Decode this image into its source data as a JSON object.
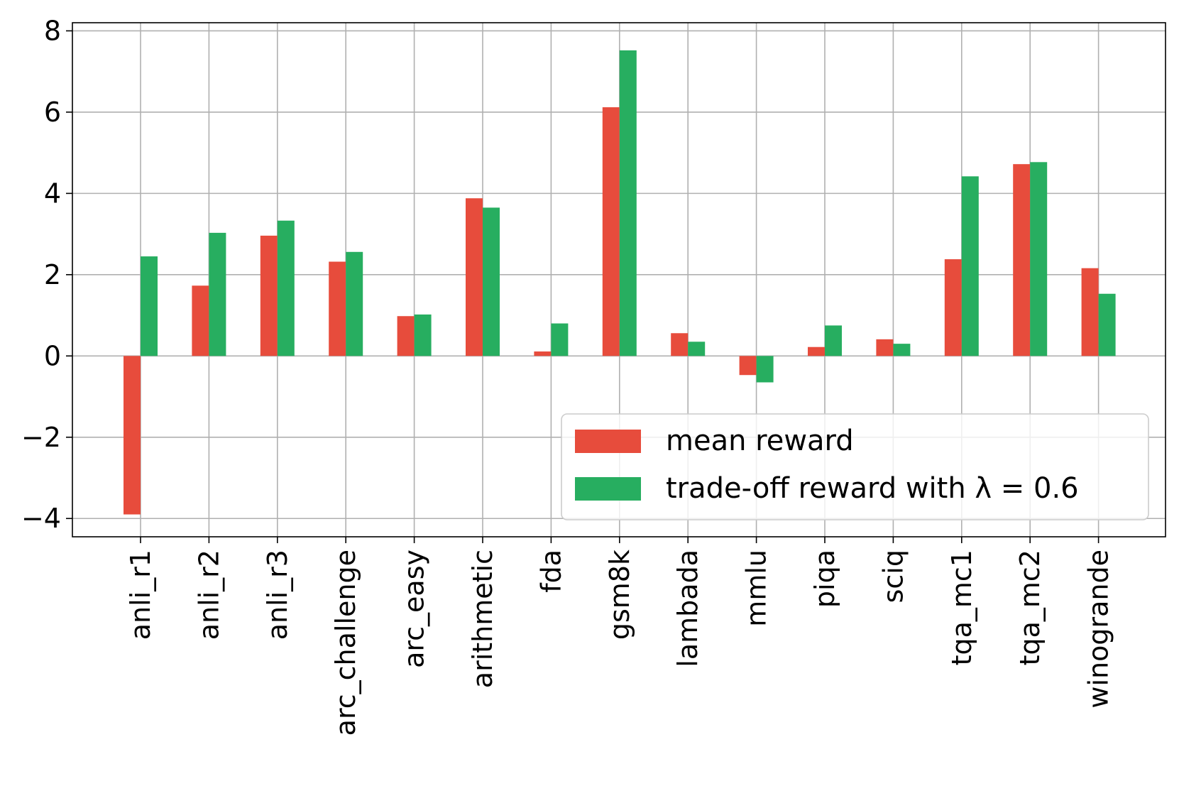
{
  "chart_data": {
    "type": "bar",
    "categories": [
      "anli_r1",
      "anli_r2",
      "anli_r3",
      "arc_challenge",
      "arc_easy",
      "arithmetic",
      "fda",
      "gsm8k",
      "lambada",
      "mmlu",
      "piqa",
      "sciq",
      "tqa_mc1",
      "tqa_mc2",
      "winogrande"
    ],
    "series": [
      {
        "name": "mean reward",
        "color": "#e74c3c",
        "values": [
          -3.9,
          1.73,
          2.96,
          2.32,
          0.98,
          3.88,
          0.11,
          6.12,
          0.56,
          -0.47,
          0.22,
          0.41,
          2.38,
          4.72,
          2.16
        ]
      },
      {
        "name": "trade-off reward with λ = 0.6",
        "color": "#27ae60",
        "values": [
          2.45,
          3.03,
          3.33,
          2.56,
          1.02,
          3.65,
          0.8,
          7.52,
          0.35,
          -0.65,
          0.75,
          0.3,
          4.42,
          4.77,
          1.53
        ]
      }
    ],
    "ylim": [
      -4.45,
      8.2
    ],
    "yticks": [
      -4,
      -2,
      0,
      2,
      4,
      6,
      8
    ],
    "ytick_labels": [
      "−4",
      "−2",
      "0",
      "2",
      "4",
      "6",
      "8"
    ],
    "grid": true,
    "legend_position": "lower-right",
    "xlabel": "",
    "ylabel": "",
    "title": ""
  }
}
